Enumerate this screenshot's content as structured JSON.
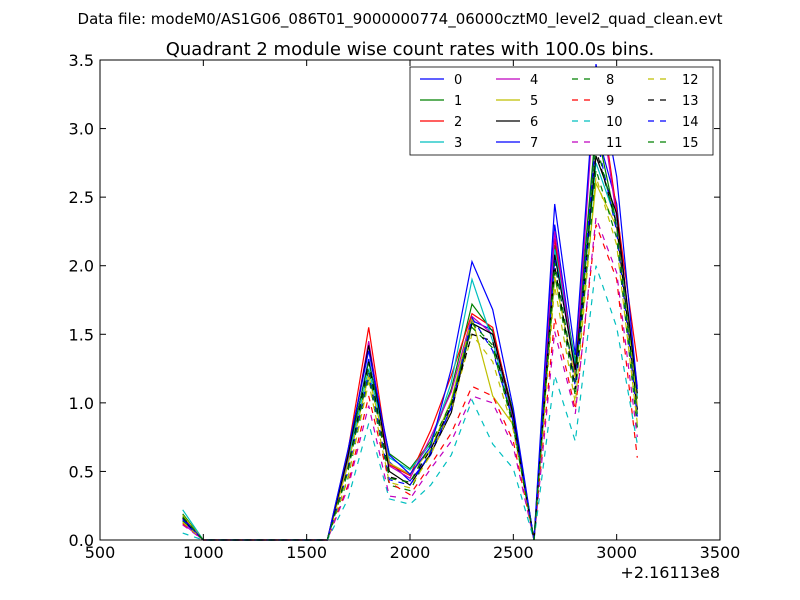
{
  "chart_data": {
    "type": "line",
    "suptitle": "Data file: modeM0/AS1G06_086T01_9000000774_06000cztM0_level2_quad_clean.evt",
    "title": "Quadrant 2 module wise count rates with 100.0s bins.",
    "xlabel": "",
    "ylabel": "",
    "x_offset_label": "+2.16113e8",
    "xlim": [
      500,
      3500
    ],
    "ylim": [
      0.0,
      3.5
    ],
    "xticks": [
      500,
      1000,
      1500,
      2000,
      2500,
      3000,
      3500
    ],
    "xtick_labels": [
      "500",
      "1000",
      "1500",
      "2000",
      "2500",
      "3000",
      "3500"
    ],
    "yticks": [
      0.0,
      0.5,
      1.0,
      1.5,
      2.0,
      2.5,
      3.0,
      3.5
    ],
    "ytick_labels": [
      "0.0",
      "0.5",
      "1.0",
      "1.5",
      "2.0",
      "2.5",
      "3.0",
      "3.5"
    ],
    "grid": false,
    "legend": {
      "placement": "top-right",
      "columns": 4
    },
    "x": [
      900,
      1000,
      1100,
      1200,
      1300,
      1400,
      1500,
      1600,
      1700,
      1800,
      1900,
      2000,
      2100,
      2200,
      2300,
      2400,
      2500,
      2600,
      2700,
      2800,
      2900,
      3000,
      3100
    ],
    "series": [
      {
        "name": "0",
        "color": "#0000ff",
        "dash": "solid",
        "values": [
          0.14,
          0,
          0,
          0,
          0,
          0,
          0,
          0,
          0.6,
          1.32,
          0.57,
          0.43,
          0.62,
          0.97,
          1.6,
          1.53,
          0.92,
          0,
          2.3,
          1.25,
          3.0,
          2.45,
          0.95
        ]
      },
      {
        "name": "1",
        "color": "#008000",
        "dash": "solid",
        "values": [
          0.19,
          0,
          0,
          0,
          0,
          0,
          0,
          0,
          0.62,
          1.3,
          0.63,
          0.52,
          0.72,
          1.1,
          1.72,
          1.52,
          0.93,
          0,
          2.15,
          1.3,
          3.02,
          2.3,
          1.03
        ]
      },
      {
        "name": "2",
        "color": "#ff0000",
        "dash": "solid",
        "values": [
          0.17,
          0,
          0,
          0,
          0,
          0,
          0,
          0,
          0.65,
          1.55,
          0.55,
          0.47,
          0.8,
          1.2,
          1.65,
          1.55,
          0.9,
          0,
          2.2,
          1.22,
          3.45,
          2.4,
          1.3
        ]
      },
      {
        "name": "3",
        "color": "#00bfbf",
        "dash": "solid",
        "values": [
          0.22,
          0,
          0,
          0,
          0,
          0,
          0,
          0,
          0.58,
          1.25,
          0.6,
          0.51,
          0.7,
          1.15,
          1.9,
          1.45,
          0.88,
          0,
          2.12,
          1.28,
          2.75,
          2.32,
          1.05
        ]
      },
      {
        "name": "4",
        "color": "#bf00bf",
        "dash": "solid",
        "values": [
          0.12,
          0,
          0,
          0,
          0,
          0,
          0,
          0,
          0.6,
          1.45,
          0.54,
          0.45,
          0.75,
          1.08,
          1.63,
          1.5,
          0.89,
          0,
          2.25,
          1.2,
          3.4,
          2.35,
          1.12
        ]
      },
      {
        "name": "5",
        "color": "#bfbf00",
        "dash": "solid",
        "values": [
          0.18,
          0,
          0,
          0,
          0,
          0,
          0,
          0,
          0.55,
          1.2,
          0.56,
          0.48,
          0.66,
          1.02,
          1.62,
          1.05,
          0.84,
          0,
          1.92,
          1.18,
          2.6,
          2.28,
          0.98
        ]
      },
      {
        "name": "6",
        "color": "#000000",
        "dash": "solid",
        "values": [
          0.15,
          0,
          0,
          0,
          0,
          0,
          0,
          0,
          0.61,
          1.42,
          0.5,
          0.4,
          0.63,
          0.93,
          1.58,
          1.5,
          0.91,
          0,
          2.08,
          1.24,
          2.8,
          2.38,
          1.07
        ]
      },
      {
        "name": "7",
        "color": "#0000ff",
        "dash": "solid",
        "values": [
          0.16,
          0,
          0,
          0,
          0,
          0,
          0,
          0,
          0.66,
          1.38,
          0.62,
          0.48,
          0.68,
          1.25,
          2.03,
          1.68,
          0.96,
          0,
          2.45,
          1.35,
          3.47,
          2.65,
          1.1
        ]
      },
      {
        "name": "8",
        "color": "#008000",
        "dash": "dashed",
        "values": [
          0.14,
          0,
          0,
          0,
          0,
          0,
          0,
          0,
          0.45,
          1.18,
          0.4,
          0.36,
          0.65,
          1.0,
          1.55,
          1.4,
          0.82,
          0,
          1.95,
          1.05,
          2.7,
          2.2,
          0.82
        ]
      },
      {
        "name": "9",
        "color": "#ff0000",
        "dash": "dashed",
        "values": [
          0.12,
          0,
          0,
          0,
          0,
          0,
          0,
          0,
          0.4,
          1.05,
          0.42,
          0.33,
          0.55,
          0.78,
          1.12,
          1.05,
          0.72,
          0,
          1.62,
          0.95,
          2.3,
          1.9,
          0.6
        ]
      },
      {
        "name": "10",
        "color": "#00bfbf",
        "dash": "dashed",
        "values": [
          0.05,
          0,
          0,
          0,
          0,
          0,
          0,
          0,
          0.3,
          0.85,
          0.3,
          0.26,
          0.4,
          0.62,
          1.02,
          0.7,
          0.52,
          0,
          1.2,
          0.72,
          2.0,
          1.55,
          0.7
        ]
      },
      {
        "name": "11",
        "color": "#bf00bf",
        "dash": "dashed",
        "values": [
          0.11,
          0,
          0,
          0,
          0,
          0,
          0,
          0,
          0.38,
          0.98,
          0.32,
          0.3,
          0.52,
          0.72,
          1.05,
          1.0,
          0.68,
          0,
          1.52,
          0.92,
          2.35,
          1.95,
          0.75
        ]
      },
      {
        "name": "12",
        "color": "#bfbf00",
        "dash": "dashed",
        "values": [
          0.13,
          0,
          0,
          0,
          0,
          0,
          0,
          0,
          0.46,
          1.15,
          0.42,
          0.38,
          0.62,
          0.95,
          1.5,
          1.3,
          0.8,
          0,
          1.85,
          1.0,
          2.65,
          2.15,
          0.85
        ]
      },
      {
        "name": "13",
        "color": "#000000",
        "dash": "dashed",
        "values": [
          0.16,
          0,
          0,
          0,
          0,
          0,
          0,
          0,
          0.52,
          1.3,
          0.46,
          0.42,
          0.66,
          0.98,
          1.5,
          1.45,
          0.85,
          0,
          2.0,
          1.1,
          2.85,
          2.3,
          0.95
        ]
      },
      {
        "name": "14",
        "color": "#0000ff",
        "dash": "dashed",
        "values": [
          0.15,
          0,
          0,
          0,
          0,
          0,
          0,
          0,
          0.5,
          1.22,
          0.44,
          0.4,
          0.64,
          0.96,
          1.62,
          1.38,
          0.86,
          0,
          2.05,
          1.12,
          2.95,
          2.25,
          0.9
        ]
      },
      {
        "name": "15",
        "color": "#008000",
        "dash": "dashed",
        "values": [
          0.17,
          0,
          0,
          0,
          0,
          0,
          0,
          0,
          0.5,
          1.25,
          0.45,
          0.42,
          0.7,
          1.0,
          1.58,
          1.42,
          0.84,
          0,
          2.02,
          1.15,
          2.9,
          2.28,
          0.92
        ]
      }
    ]
  }
}
